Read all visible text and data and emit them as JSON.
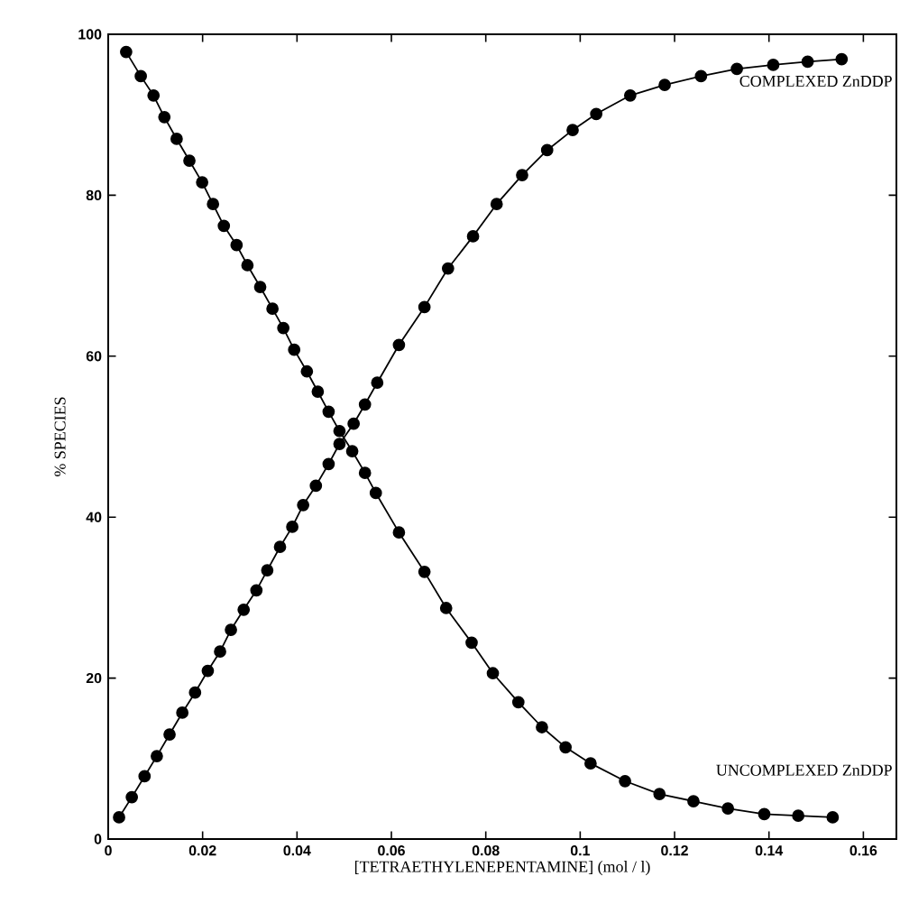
{
  "chart_data": {
    "type": "line",
    "xlabel": "[TETRAETHYLENEPENTAMINE]    (mol / l)",
    "ylabel": "% SPECIES",
    "xlim": [
      0,
      0.167
    ],
    "ylim": [
      0,
      100
    ],
    "xticks": [
      0,
      0.02,
      0.04,
      0.06,
      0.08,
      0.1,
      0.12,
      0.14,
      0.16
    ],
    "yticks": [
      0,
      20,
      40,
      60,
      80,
      100
    ],
    "marker": "circle",
    "line_style": "solid",
    "grid": false,
    "legend": false,
    "series": [
      {
        "name": "COMPLEXED ZnDDP",
        "color": "#000000",
        "x": [
          0.0023,
          0.005,
          0.0077,
          0.0103,
          0.013,
          0.0157,
          0.0184,
          0.0211,
          0.0237,
          0.026,
          0.0287,
          0.0314,
          0.0337,
          0.0364,
          0.039,
          0.0413,
          0.044,
          0.0467,
          0.049,
          0.052,
          0.0544,
          0.057,
          0.0616,
          0.067,
          0.072,
          0.0773,
          0.0823,
          0.0877,
          0.093,
          0.0984,
          0.1034,
          0.1106,
          0.1179,
          0.1256,
          0.1332,
          0.1409,
          0.1482,
          0.1554
        ],
        "values": [
          2.7,
          5.2,
          7.8,
          10.3,
          13.0,
          15.7,
          18.2,
          20.9,
          23.3,
          26.0,
          28.5,
          30.9,
          33.4,
          36.3,
          38.8,
          41.5,
          43.9,
          46.6,
          49.1,
          51.6,
          54.0,
          56.7,
          61.4,
          66.1,
          70.9,
          74.9,
          78.9,
          82.5,
          85.6,
          88.1,
          90.1,
          92.4,
          93.7,
          94.8,
          95.7,
          96.2,
          96.6,
          96.9
        ]
      },
      {
        "name": "UNCOMPLEXED ZnDDP",
        "color": "#000000",
        "x": [
          0.0038,
          0.0069,
          0.0096,
          0.0119,
          0.0145,
          0.0172,
          0.0199,
          0.0222,
          0.0245,
          0.0272,
          0.0295,
          0.0322,
          0.0348,
          0.0371,
          0.0394,
          0.0421,
          0.0444,
          0.0467,
          0.049,
          0.0517,
          0.0544,
          0.0567,
          0.0616,
          0.067,
          0.0716,
          0.077,
          0.0815,
          0.0869,
          0.0919,
          0.0969,
          0.1022,
          0.1095,
          0.1168,
          0.124,
          0.1313,
          0.139,
          0.1462,
          0.1535
        ],
        "values": [
          97.8,
          94.8,
          92.4,
          89.7,
          87.0,
          84.3,
          81.6,
          78.9,
          76.2,
          73.8,
          71.3,
          68.6,
          65.9,
          63.5,
          60.8,
          58.1,
          55.6,
          53.1,
          50.7,
          48.2,
          45.5,
          43.0,
          38.1,
          33.2,
          28.7,
          24.4,
          20.6,
          17.0,
          13.9,
          11.4,
          9.4,
          7.2,
          5.6,
          4.7,
          3.8,
          3.1,
          2.9,
          2.7
        ]
      }
    ]
  }
}
